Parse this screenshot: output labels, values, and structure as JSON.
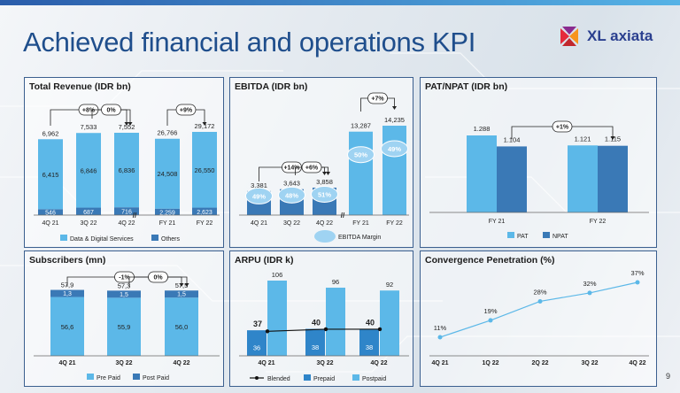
{
  "page": {
    "title": "Achieved financial and operations KPI",
    "page_number": "9"
  },
  "logo": {
    "text": "XL axiata"
  },
  "colors": {
    "light": "#5cb8e8",
    "dark": "#3a79b6",
    "title": "#1f4e8c",
    "border": "#3b5f8f",
    "margin": "#9fd3f2",
    "line": "#5cb8e8"
  },
  "chart_data": [
    {
      "id": "revenue",
      "type": "bar",
      "title": "Total Revenue (IDR bn)",
      "categories": [
        "4Q 21",
        "3Q 22",
        "4Q 22",
        "FY 21",
        "FY 22"
      ],
      "totals": [
        "6,962",
        "7,533",
        "7,552",
        "26,766",
        "29,172"
      ],
      "series": [
        {
          "name": "Data & Digital Services",
          "values": [
            6415,
            6846,
            6836,
            24508,
            26550
          ],
          "labels": [
            "6,415",
            "6,846",
            "6,836",
            "24,508",
            "26,550"
          ]
        },
        {
          "name": "Others",
          "values": [
            546,
            687,
            716,
            2259,
            2623
          ],
          "labels": [
            "546",
            "687",
            "716",
            "2,259",
            "2,623"
          ]
        }
      ],
      "growth": [
        {
          "label": "+8%",
          "from": 0,
          "to": 2
        },
        {
          "label": "0%",
          "from": 1,
          "to": 2
        },
        {
          "label": "+9%",
          "from": 3,
          "to": 4
        }
      ],
      "legend": "bottom"
    },
    {
      "id": "ebitda",
      "type": "bar",
      "title": "EBITDA (IDR bn)",
      "categories": [
        "4Q 21",
        "3Q 22",
        "4Q 22",
        "FY 21",
        "FY 22"
      ],
      "values": [
        3381,
        3643,
        3858,
        13287,
        14235
      ],
      "labels": [
        "3,381",
        "3,643",
        "3,858",
        "13,287",
        "14,235"
      ],
      "margin": [
        "49%",
        "48%",
        "51%",
        "50%",
        "49%"
      ],
      "margin_label": "EBITDA Margin",
      "growth": [
        {
          "label": "+14%",
          "from": 0,
          "to": 2
        },
        {
          "label": "+6%",
          "from": 1,
          "to": 2
        },
        {
          "label": "+7%",
          "from": 3,
          "to": 4
        }
      ]
    },
    {
      "id": "pat",
      "type": "bar",
      "title": "PAT/NPAT (IDR bn)",
      "categories": [
        "FY 21",
        "FY 22"
      ],
      "series": [
        {
          "name": "PAT",
          "values": [
            1288,
            1121
          ],
          "labels": [
            "1.288",
            "1.121"
          ]
        },
        {
          "name": "NPAT",
          "values": [
            1104,
            1115
          ],
          "labels": [
            "1.104",
            "1.115"
          ]
        }
      ],
      "growth": [
        {
          "label": "+1%"
        }
      ],
      "legend": "bottom"
    },
    {
      "id": "subscribers",
      "type": "bar",
      "title": "Subscribers (mn)",
      "categories": [
        "4Q 21",
        "3Q 22",
        "4Q 22"
      ],
      "totals": [
        "57,9",
        "57,3",
        "57,5"
      ],
      "series": [
        {
          "name": "Pre Paid",
          "values": [
            56.6,
            55.9,
            56.0
          ],
          "labels": [
            "56,6",
            "55,9",
            "56,0"
          ]
        },
        {
          "name": "Post Paid",
          "values": [
            1.3,
            1.5,
            1.5
          ],
          "labels": [
            "1,3",
            "1,5",
            "1,5"
          ]
        }
      ],
      "growth": [
        {
          "label": "-1%",
          "from": 0,
          "to": 2
        },
        {
          "label": "0%",
          "from": 1,
          "to": 2
        }
      ],
      "legend": "bottom"
    },
    {
      "id": "arpu",
      "type": "bar",
      "title": "ARPU (IDR k)",
      "categories": [
        "4Q 21",
        "3Q 22",
        "4Q 22"
      ],
      "series": [
        {
          "name": "Prepaid",
          "values": [
            36,
            38,
            38
          ],
          "labels": [
            "36",
            "38",
            "38"
          ]
        },
        {
          "name": "Postpaid",
          "values": [
            106,
            96,
            92
          ],
          "labels": [
            "106",
            "96",
            "92"
          ]
        },
        {
          "name": "Blended",
          "values": [
            37,
            40,
            40
          ],
          "labels": [
            "37",
            "40",
            "40"
          ]
        }
      ],
      "legend": "bottom"
    },
    {
      "id": "convergence",
      "type": "line",
      "title": "Convergence Penetration (%)",
      "categories": [
        "4Q 21",
        "1Q 22",
        "2Q 22",
        "3Q 22",
        "4Q 22"
      ],
      "values": [
        11,
        19,
        28,
        32,
        37
      ],
      "labels": [
        "11%",
        "19%",
        "28%",
        "32%",
        "37%"
      ]
    }
  ]
}
